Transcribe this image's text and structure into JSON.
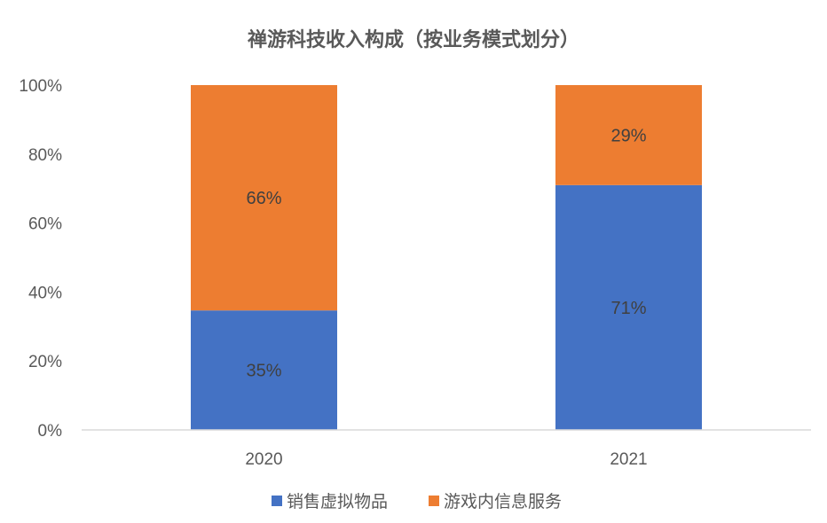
{
  "chart_data": {
    "type": "bar",
    "stacked": true,
    "percent_stacked": true,
    "title": "禅游科技收入构成（按业务模式划分）",
    "categories": [
      "2020",
      "2021"
    ],
    "series": [
      {
        "name": "销售虚拟物品",
        "color": "#4472C4",
        "values": [
          35,
          71
        ],
        "labels": [
          "35%",
          "71%"
        ]
      },
      {
        "name": "游戏内信息服务",
        "color": "#ED7D31",
        "values": [
          66,
          29
        ],
        "labels": [
          "66%",
          "29%"
        ]
      }
    ],
    "y_ticks": [
      "0%",
      "20%",
      "40%",
      "60%",
      "80%",
      "100%"
    ],
    "ylim": [
      0,
      100
    ],
    "grid": false,
    "legend_position": "bottom"
  }
}
